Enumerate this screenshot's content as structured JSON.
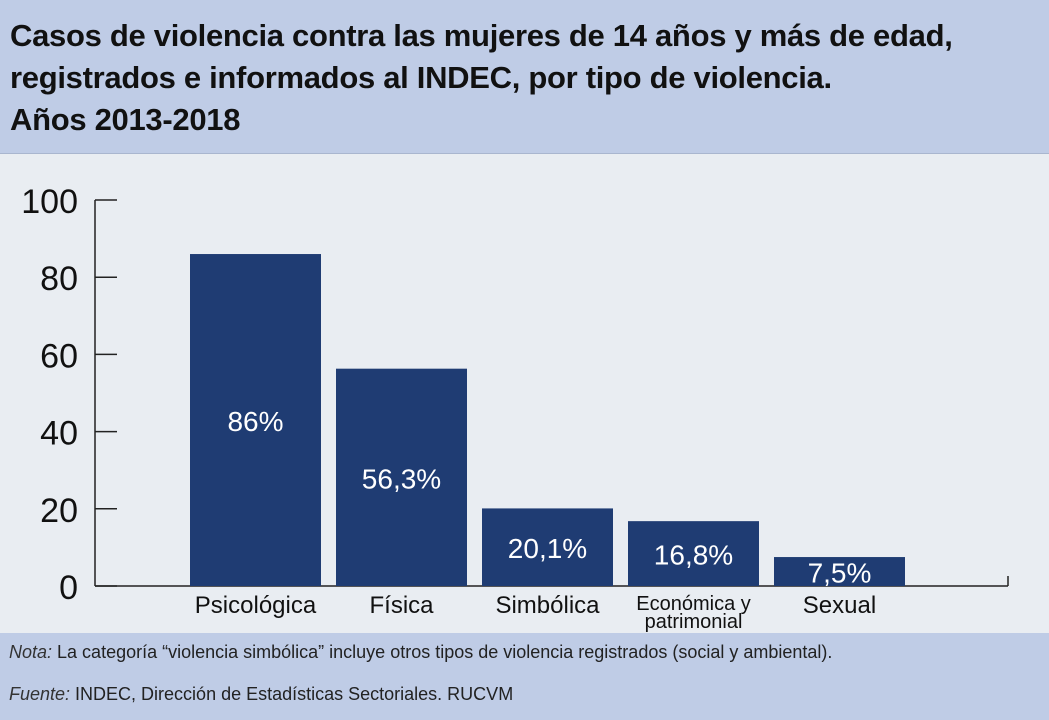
{
  "title": {
    "line1": "Casos de violencia contra las mujeres de 14 años y más de edad,",
    "line2": "registrados e informados al INDEC, por tipo de violencia.",
    "line3": "Años 2013-2018"
  },
  "chart_data": {
    "type": "bar",
    "categories": [
      "Psicológica",
      "Física",
      "Simbólica",
      "Económica y patrimonial",
      "Sexual"
    ],
    "category_lines": [
      [
        "Psicológica"
      ],
      [
        "Física"
      ],
      [
        "Simbólica"
      ],
      [
        "Económica y",
        "patrimonial"
      ],
      [
        "Sexual"
      ]
    ],
    "values": [
      86,
      56.3,
      20.1,
      16.8,
      7.5
    ],
    "labels": [
      "86%",
      "56,3%",
      "20,1%",
      "16,8%",
      "7,5%"
    ],
    "yticks": [
      "0",
      "20",
      "40",
      "60",
      "80",
      "100"
    ],
    "ylim": [
      0,
      100
    ],
    "xlabel": "",
    "ylabel": "",
    "grid": false,
    "bar_color": "#1f3c73",
    "label_color": "#ffffff"
  },
  "notes": {
    "nota_label": "Nota:",
    "nota_text": " La categoría “violencia simbólica” incluye otros tipos de violencia registrados (social y ambiental).",
    "fuente_label": "Fuente:",
    "fuente_text": " INDEC, Dirección de Estadísticas Sectoriales. RUCVM"
  },
  "colors": {
    "header_bg": "#bfcce6",
    "plot_bg": "#e9edf2"
  }
}
